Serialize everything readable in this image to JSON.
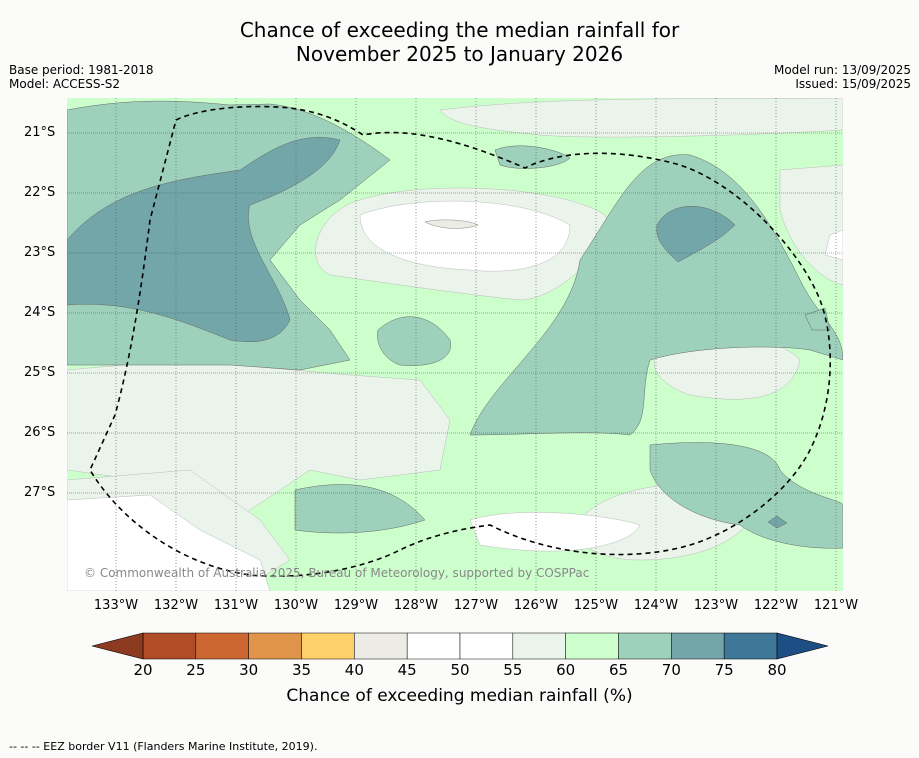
{
  "title_line1": "Chance of exceeding the median rainfall for",
  "title_line2": "November 2025 to January 2026",
  "meta_left": [
    "Base period: 1981-2018",
    "Model: ACCESS-S2"
  ],
  "meta_right": [
    "Model run: 13/09/2025",
    "Issued: 15/09/2025"
  ],
  "latitudes": [
    "21°S",
    "22°S",
    "23°S",
    "24°S",
    "25°S",
    "26°S",
    "27°S"
  ],
  "longitudes": [
    "133°W",
    "132°W",
    "131°W",
    "130°W",
    "129°W",
    "128°W",
    "127°W",
    "126°W",
    "125°W",
    "124°W",
    "123°W",
    "122°W",
    "121°W"
  ],
  "copyright": "© Commonwealth of Australia 2025, Bureau of Meteorology, supported by COSPPac",
  "colorbar": {
    "ticks": [
      "20",
      "25",
      "30",
      "35",
      "40",
      "45",
      "50",
      "55",
      "60",
      "65",
      "70",
      "75",
      "80"
    ],
    "colors": [
      "#b04d28",
      "#cd6732",
      "#e0944a",
      "#fdd06a",
      "#ecebe6",
      "#ffffff",
      "#ffffff",
      "#eaf4ea",
      "#ccffcc",
      "#9dd1bb",
      "#72a6a8",
      "#3e7797"
    ],
    "under_color": "#8c3b20",
    "over_color": "#1d4f85",
    "label": "Chance of exceeding median rainfall (%)"
  },
  "legend_note": "-- -- -- EEZ border V11 (Flanders Marine Institute, 2019)."
}
